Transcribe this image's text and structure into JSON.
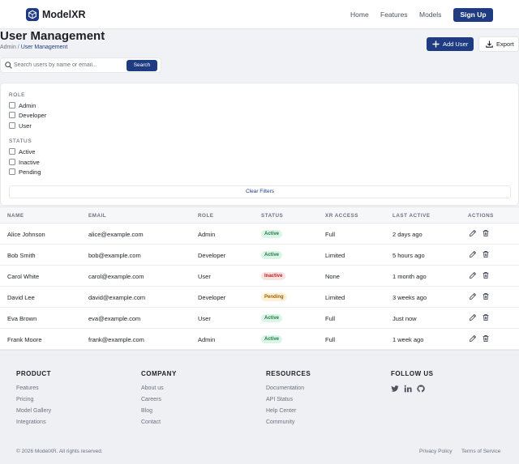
{
  "header": {
    "brand": "ModelXR",
    "nav": [
      "Home",
      "Features",
      "Models"
    ],
    "signup_label": "Sign Up"
  },
  "page": {
    "title": "User Management",
    "breadcrumb_root": "Admin",
    "breadcrumb_sep": " / ",
    "breadcrumb_current": "User Management",
    "add_user_label": "Add User",
    "export_label": "Export"
  },
  "search": {
    "placeholder": "Search users by name or email...",
    "value": "",
    "button_label": "Search"
  },
  "filters": {
    "role_title": "ROLE",
    "roles": [
      "Admin",
      "Developer",
      "User"
    ],
    "status_title": "STATUS",
    "statuses": [
      "Active",
      "Inactive",
      "Pending"
    ],
    "clear_label": "Clear Filters"
  },
  "table": {
    "columns": [
      "NAME",
      "EMAIL",
      "ROLE",
      "STATUS",
      "XR ACCESS",
      "LAST ACTIVE",
      "ACTIONS"
    ],
    "rows": [
      {
        "name": "Alice Johnson",
        "email": "alice@example.com",
        "role": "Admin",
        "status": "Active",
        "xr": "Full",
        "last": "2 days ago"
      },
      {
        "name": "Bob Smith",
        "email": "bob@example.com",
        "role": "Developer",
        "status": "Active",
        "xr": "Limited",
        "last": "5 hours ago"
      },
      {
        "name": "Carol White",
        "email": "carol@example.com",
        "role": "User",
        "status": "Inactive",
        "xr": "None",
        "last": "1 month ago"
      },
      {
        "name": "David Lee",
        "email": "david@example.com",
        "role": "Developer",
        "status": "Pending",
        "xr": "Limited",
        "last": "3 weeks ago"
      },
      {
        "name": "Eva Brown",
        "email": "eva@example.com",
        "role": "User",
        "status": "Active",
        "xr": "Full",
        "last": "Just now"
      },
      {
        "name": "Frank Moore",
        "email": "frank@example.com",
        "role": "Admin",
        "status": "Active",
        "xr": "Full",
        "last": "1 week ago"
      }
    ],
    "status_colors": {
      "Active": {
        "bg": "#dcf5e7",
        "fg": "#1f7a47"
      },
      "Inactive": {
        "bg": "#fde2e2",
        "fg": "#b42323"
      },
      "Pending": {
        "bg": "#fdf0d5",
        "fg": "#a0600a"
      }
    },
    "action_icons": [
      "pencil-icon",
      "trash-icon"
    ]
  },
  "footer": {
    "product": {
      "title": "PRODUCT",
      "links": [
        "Features",
        "Pricing",
        "Model Gallery",
        "Integrations"
      ]
    },
    "company": {
      "title": "COMPANY",
      "links": [
        "About us",
        "Careers",
        "Blog",
        "Contact"
      ]
    },
    "resources": {
      "title": "RESOURCES",
      "links": [
        "Documentation",
        "API Status",
        "Help Center",
        "Community"
      ]
    },
    "follow": {
      "title": "FOLLOW US",
      "icons": [
        "twitter-icon",
        "linkedin-icon",
        "github-icon"
      ]
    },
    "copyright": "© 2026 ModelXR. All rights reserved.",
    "privacy": "Privacy Policy",
    "terms": "Terms of Service"
  },
  "colors": {
    "accent": "#1f3b82",
    "page_bg": "#f1f2f5"
  }
}
